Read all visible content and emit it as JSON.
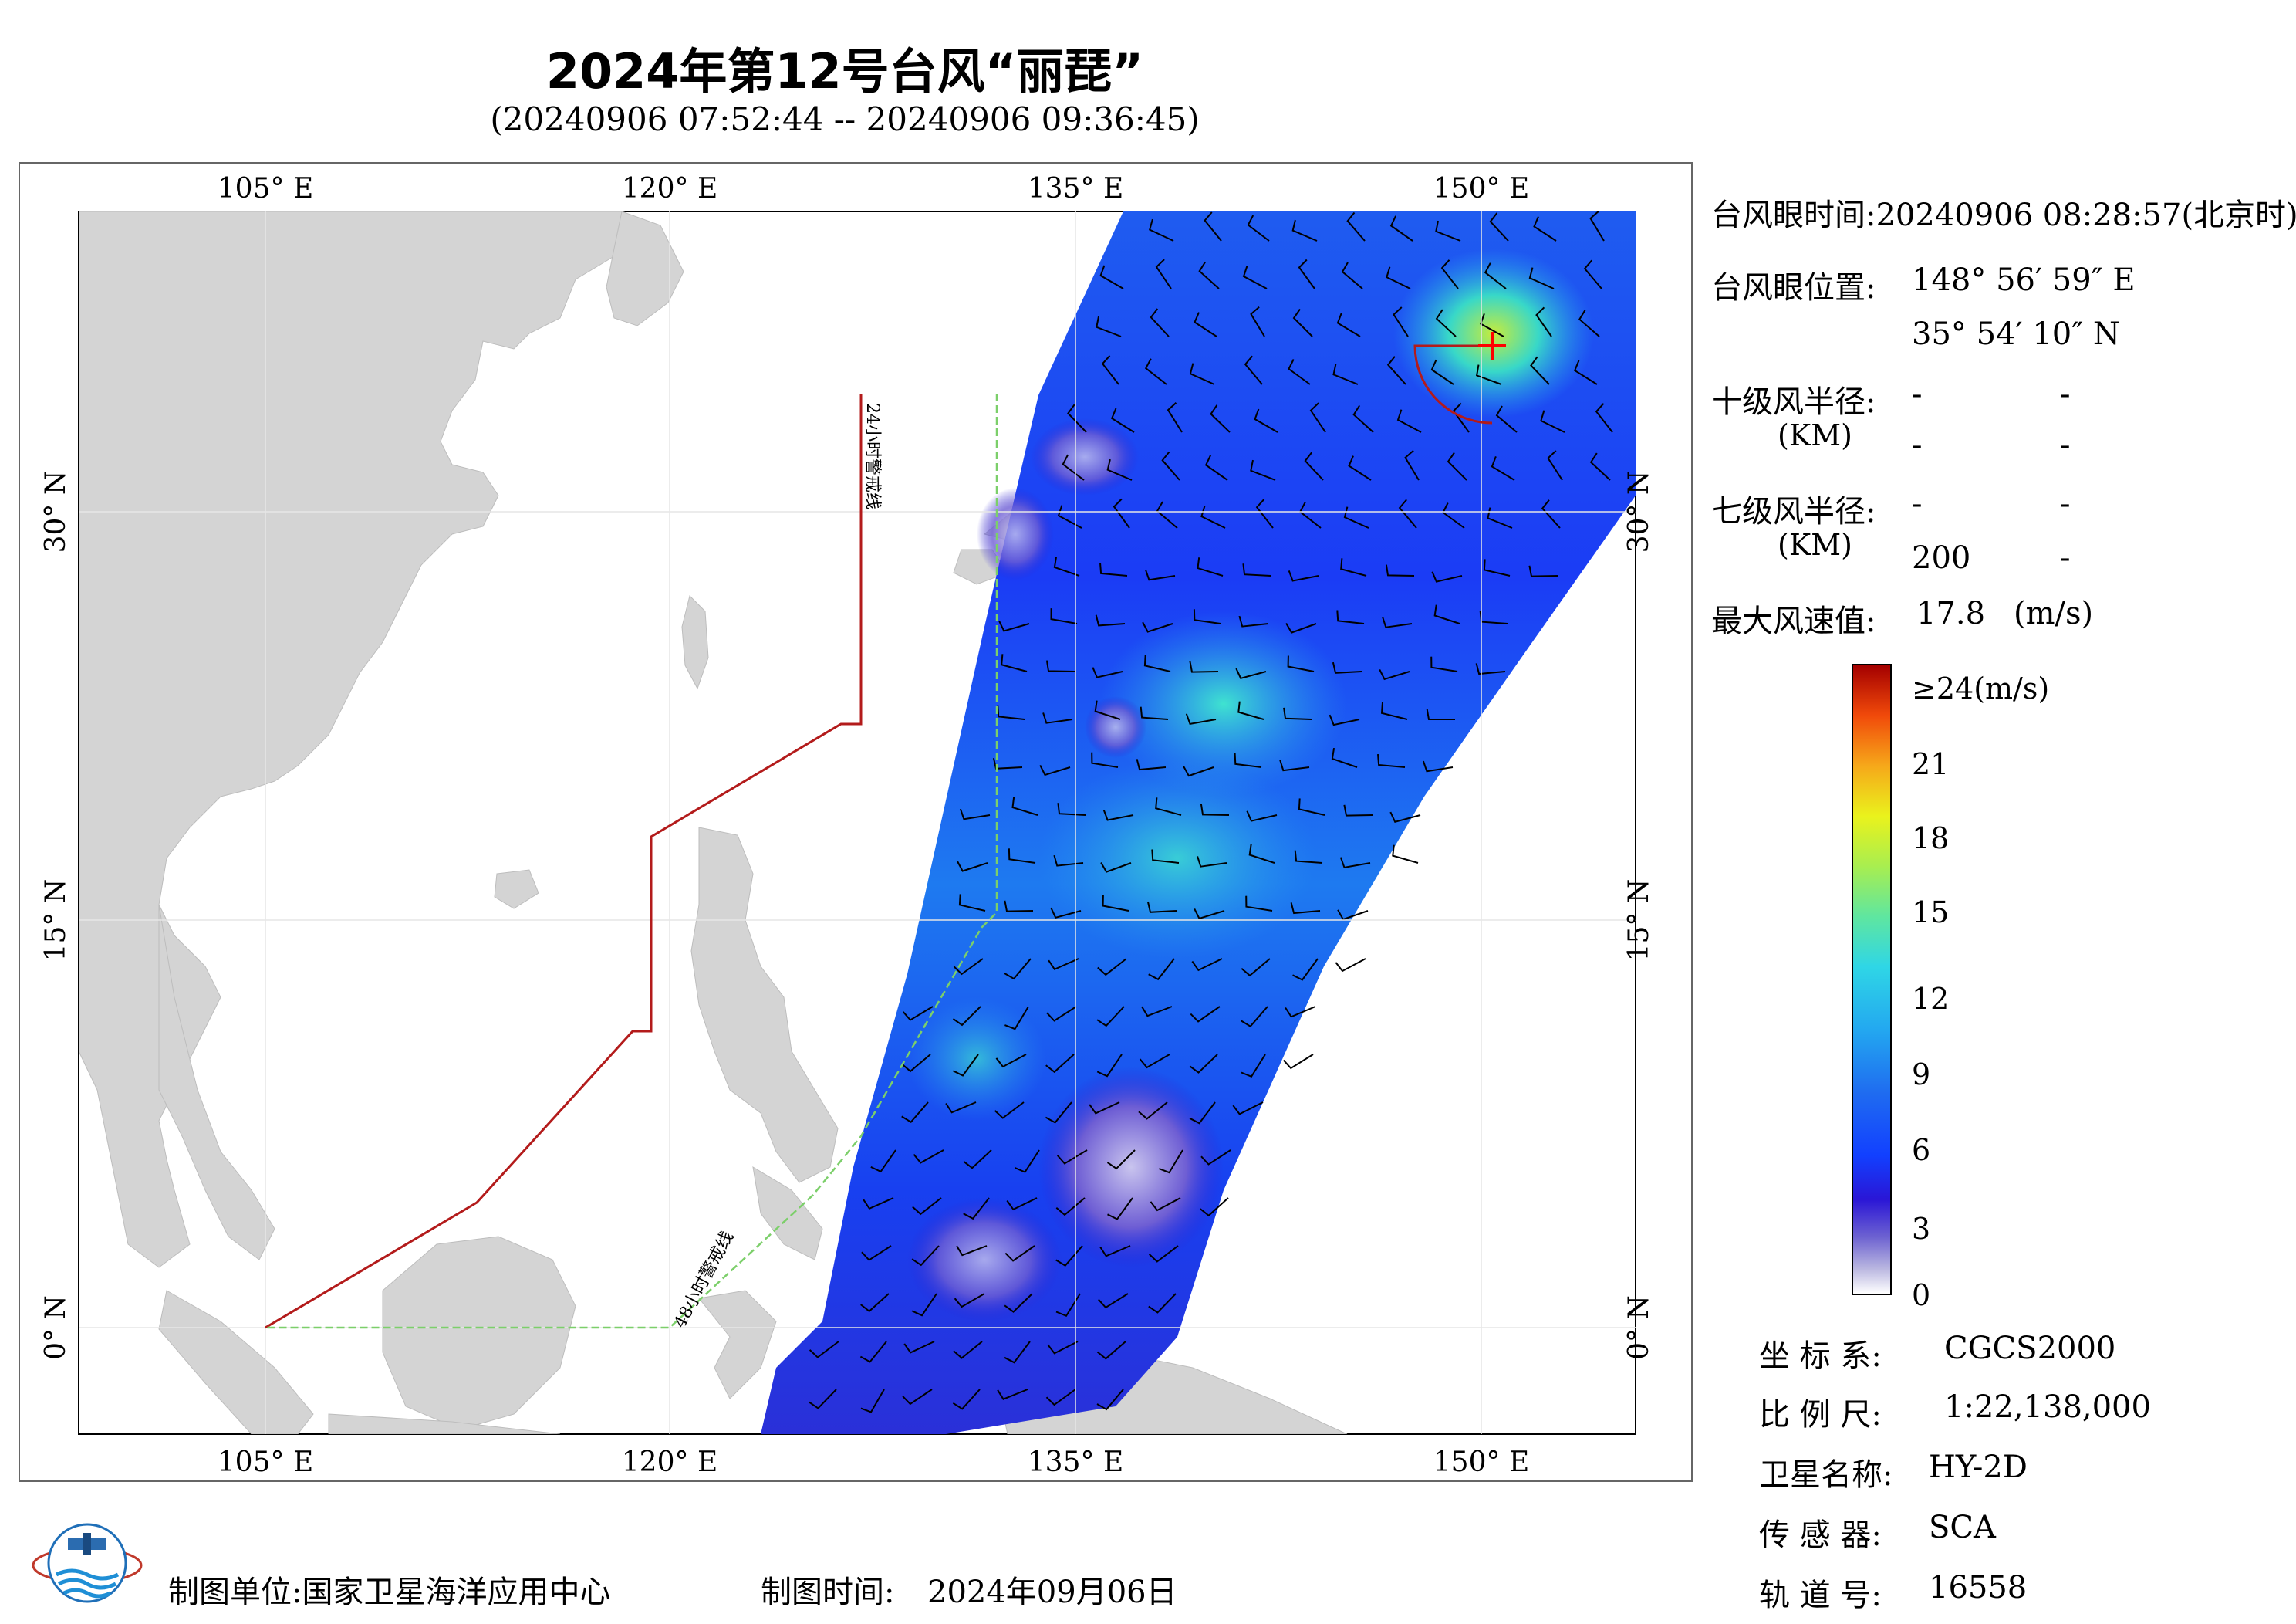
{
  "header": {
    "title": "2024年第12号台风“丽琵”",
    "subtitle": "(20240906 07:52:44 -- 20240906 09:36:45)"
  },
  "map": {
    "lon_top_labels": [
      "105° E",
      "120° E",
      "135° E",
      "150° E"
    ],
    "lon_bottom_labels": [
      "105° E",
      "120° E",
      "135° E",
      "150° E"
    ],
    "lat_left_labels": [
      "30° N",
      "15° N",
      "0° N"
    ],
    "lat_right_labels": [
      "30° N",
      "15° N",
      "0° N"
    ],
    "warning_24h_label": "24小时警戒线",
    "warning_48h_label": "48小时警戒线",
    "colors": {
      "land": "#d4d4d4",
      "ocean": "#ffffff",
      "warning_24h": "#b31b1b",
      "warning_48h": "#7ccf6a",
      "eye_marker": "#ff0000"
    }
  },
  "info_panel": {
    "eye_time_label": "台风眼时间:",
    "eye_time_value": "20240906 08:28:57(北京时)",
    "eye_position_label": "台风眼位置:",
    "eye_lon": "148° 56′ 59″ E",
    "eye_lat": "35° 54′ 10″ N",
    "r10_label": "十级风半径:",
    "r10_unit": "(KM)",
    "r10_values": [
      "-",
      "-",
      "-",
      "-"
    ],
    "r7_label": "七级风半径:",
    "r7_unit": "(KM)",
    "r7_values": [
      "-",
      "-",
      "200",
      "-"
    ],
    "max_wind_label": "最大风速值:",
    "max_wind_value": "17.8",
    "max_wind_unit": "(m/s)"
  },
  "colorbar": {
    "top_label": "≥24(m/s)",
    "ticks": [
      "21",
      "18",
      "15",
      "12",
      "9",
      "6",
      "3",
      "0"
    ]
  },
  "metadata": {
    "crs_label": "坐 标 系:",
    "crs_value": "CGCS2000",
    "scale_label": "比 例 尺:",
    "scale_value": "1:22,138,000",
    "satellite_label": "卫星名称:",
    "satellite_value": "HY-2D",
    "sensor_label": "传 感 器:",
    "sensor_value": "SCA",
    "orbit_label": "轨 道 号:",
    "orbit_value": "16558"
  },
  "footer": {
    "org_label": "制图单位:",
    "org_value": "国家卫星海洋应用中心",
    "date_label": "制图时间:",
    "date_value": "2024年09月06日"
  }
}
